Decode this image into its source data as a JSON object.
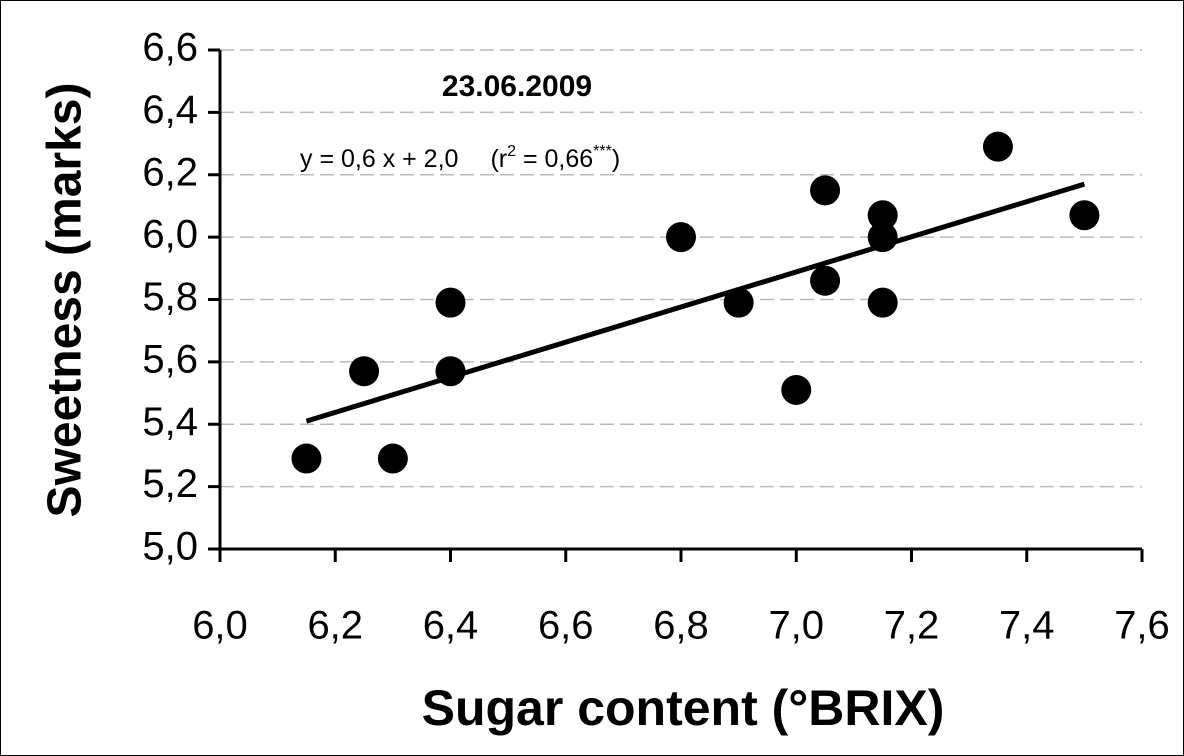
{
  "chart_data": {
    "type": "scatter",
    "title": "23.06.2009",
    "equation": [
      {
        "text": "y = 0,6 x + 2,0"
      },
      {
        "text": "(r"
      },
      {
        "text": "2",
        "sup": true
      },
      {
        "text": " = 0,66"
      },
      {
        "text": "***",
        "sup": true
      },
      {
        "text": ")"
      }
    ],
    "x_label": "Sugar content (°BRIX)",
    "y_label": "Sweetness (marks)",
    "x": [
      6.15,
      6.25,
      6.3,
      6.4,
      6.4,
      6.8,
      6.9,
      7.0,
      7.05,
      7.05,
      7.15,
      7.15,
      7.15,
      7.35,
      7.5
    ],
    "values": [
      5.29,
      5.57,
      5.29,
      5.79,
      5.57,
      6.0,
      5.79,
      5.51,
      6.15,
      5.86,
      6.07,
      6.0,
      5.79,
      6.29,
      6.07
    ],
    "color": "#000000",
    "trendline": {
      "x": [
        6.15,
        7.5
      ],
      "y": [
        5.41,
        6.17
      ],
      "color": "#000000"
    },
    "xlim": [
      6.0,
      7.6
    ],
    "ylim": [
      5.0,
      6.6
    ],
    "xticks": [
      {
        "value": 6.0,
        "label": "6,0"
      },
      {
        "value": 6.2,
        "label": "6,2"
      },
      {
        "value": 6.4,
        "label": "6,4"
      },
      {
        "value": 6.6,
        "label": "6,6"
      },
      {
        "value": 6.8,
        "label": "6,8"
      },
      {
        "value": 7.0,
        "label": "7,0"
      },
      {
        "value": 7.2,
        "label": "7,2"
      },
      {
        "value": 7.4,
        "label": "7,4"
      },
      {
        "value": 7.6,
        "label": "7,6"
      }
    ],
    "yticks": [
      {
        "value": 5.0,
        "label": "5,0"
      },
      {
        "value": 5.2,
        "label": "5,2"
      },
      {
        "value": 5.4,
        "label": "5,4"
      },
      {
        "value": 5.6,
        "label": "5,6"
      },
      {
        "value": 5.8,
        "label": "5,8"
      },
      {
        "value": 6.0,
        "label": "6,0"
      },
      {
        "value": 6.2,
        "label": "6,2"
      },
      {
        "value": 6.4,
        "label": "6,4"
      },
      {
        "value": 6.6,
        "label": "6,6"
      }
    ],
    "grid": true
  }
}
